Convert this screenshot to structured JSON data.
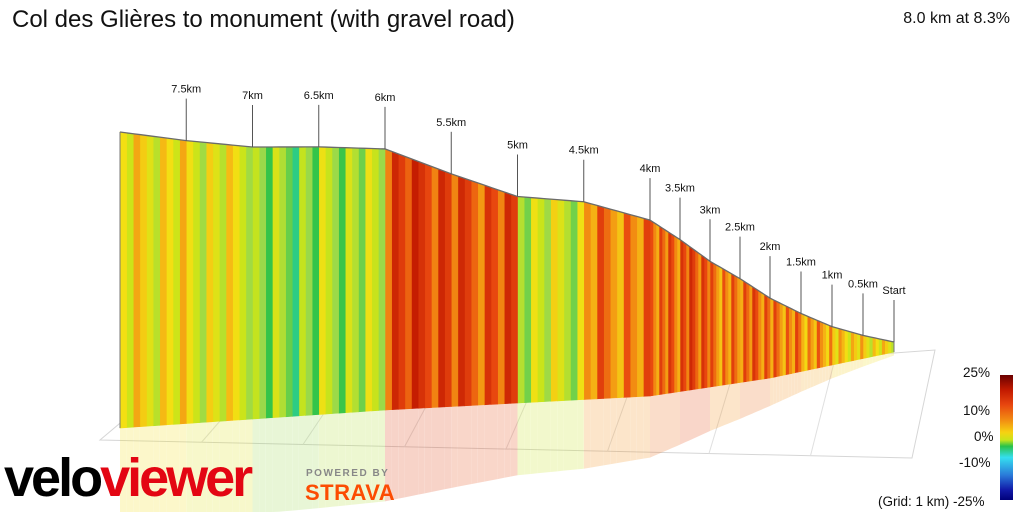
{
  "header": {
    "title": "Col des Glières to monument (with gravel road)",
    "summary": "8.0 km at 8.3%"
  },
  "legend": {
    "labels": [
      "25%",
      "10%",
      "0%",
      "-10%",
      "-25%"
    ],
    "grid_note": "(Grid: 1 km)"
  },
  "branding": {
    "logo_part1": "velo",
    "logo_part2": "viewer",
    "powered_by": "POWERED BY",
    "strava": "STRAVA"
  },
  "chart_data": {
    "type": "area",
    "title": "Col des Glières to monument (with gravel road)",
    "subtitle": "8.0 km at 8.3%",
    "x_unit": "km",
    "distance_km": 8.0,
    "average_gradient_percent": 8.3,
    "gradient_scale_percent": [
      -25,
      -10,
      0,
      10,
      25
    ],
    "grid_km": 1,
    "distance_markers": [
      "Start",
      "0.5km",
      "1km",
      "1.5km",
      "2km",
      "2.5km",
      "3km",
      "3.5km",
      "4km",
      "4.5km",
      "5km",
      "5.5km",
      "6km",
      "6.5km",
      "7km",
      "7.5km"
    ],
    "segments": [
      {
        "from_km": 0.0,
        "to_km": 0.5,
        "gradient_percent": 6
      },
      {
        "from_km": 0.5,
        "to_km": 1.0,
        "gradient_percent": 7
      },
      {
        "from_km": 1.0,
        "to_km": 1.5,
        "gradient_percent": 9
      },
      {
        "from_km": 1.5,
        "to_km": 2.0,
        "gradient_percent": 10
      },
      {
        "from_km": 2.0,
        "to_km": 2.5,
        "gradient_percent": 11
      },
      {
        "from_km": 2.5,
        "to_km": 3.0,
        "gradient_percent": 10
      },
      {
        "from_km": 3.0,
        "to_km": 3.5,
        "gradient_percent": 12
      },
      {
        "from_km": 3.5,
        "to_km": 4.0,
        "gradient_percent": 11
      },
      {
        "from_km": 4.0,
        "to_km": 4.5,
        "gradient_percent": 10
      },
      {
        "from_km": 4.5,
        "to_km": 5.0,
        "gradient_percent": 4
      },
      {
        "from_km": 5.0,
        "to_km": 5.5,
        "gradient_percent": 12
      },
      {
        "from_km": 5.5,
        "to_km": 6.0,
        "gradient_percent": 13
      },
      {
        "from_km": 6.0,
        "to_km": 6.5,
        "gradient_percent": 3
      },
      {
        "from_km": 6.5,
        "to_km": 7.0,
        "gradient_percent": 2
      },
      {
        "from_km": 7.0,
        "to_km": 7.5,
        "gradient_percent": 5
      },
      {
        "from_km": 7.5,
        "to_km": 8.0,
        "gradient_percent": 6
      }
    ],
    "grid": true,
    "legend_position": "bottom-right"
  }
}
